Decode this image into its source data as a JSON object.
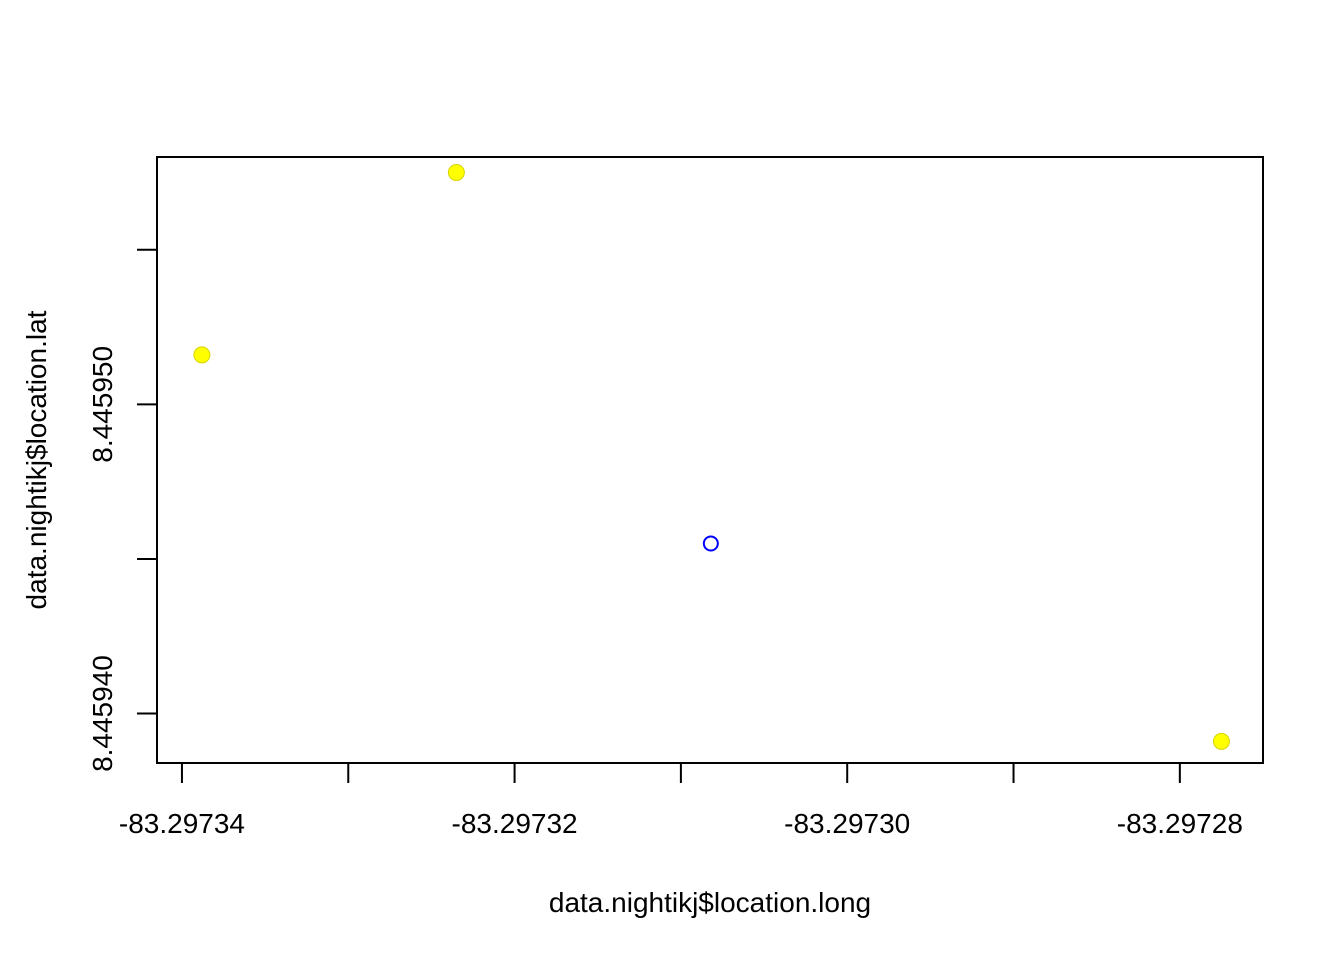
{
  "chart_data": {
    "type": "scatter",
    "title": "",
    "xlabel": "data.nightikj$location.long",
    "ylabel": "data.nightikj$location.lat",
    "xlim": [
      -83.2973415,
      -83.297275
    ],
    "ylim": [
      8.4459384,
      8.445958
    ],
    "x_ticks": [
      -83.29734,
      -83.29733,
      -83.29732,
      -83.29731,
      -83.2973,
      -83.29729,
      -83.29728
    ],
    "x_tick_labels": [
      "-83.29734",
      "",
      "-83.29732",
      "",
      "-83.29730",
      "",
      "-83.29728"
    ],
    "y_ticks": [
      8.44594,
      8.445945,
      8.44595,
      8.445955
    ],
    "y_tick_labels": [
      "8.445940",
      "",
      "8.445950",
      ""
    ],
    "grid": false,
    "series": [
      {
        "marker": "filled-circle",
        "color": "#ffff00",
        "points": [
          {
            "x": -83.2973388,
            "y": 8.4459516
          },
          {
            "x": -83.2973235,
            "y": 8.4459575
          },
          {
            "x": -83.2972775,
            "y": 8.4459391
          }
        ]
      },
      {
        "marker": "open-circle",
        "color": "#0000ff",
        "points": [
          {
            "x": -83.2973082,
            "y": 8.4459455
          }
        ]
      }
    ]
  }
}
